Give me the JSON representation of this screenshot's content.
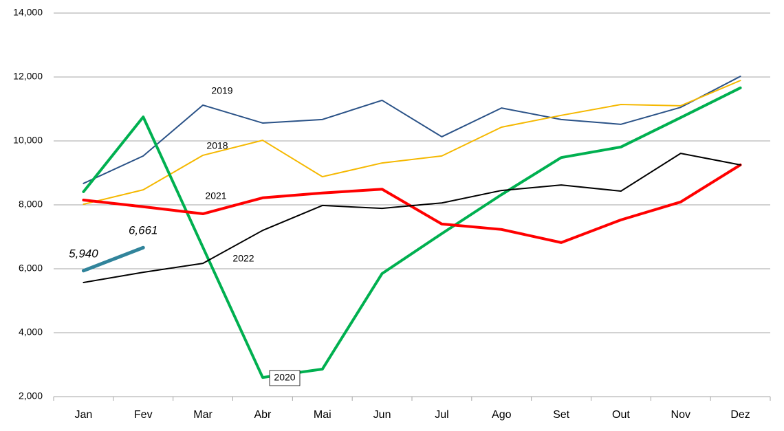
{
  "chart_data": {
    "type": "line",
    "categories": [
      "Jan",
      "Fev",
      "Mar",
      "Abr",
      "Mai",
      "Jun",
      "Jul",
      "Ago",
      "Set",
      "Out",
      "Nov",
      "Dez"
    ],
    "ylim": [
      2000,
      14000
    ],
    "yticks": [
      {
        "value": 2000,
        "label": "2,000"
      },
      {
        "value": 4000,
        "label": "4,000"
      },
      {
        "value": 6000,
        "label": "6,000"
      },
      {
        "value": 8000,
        "label": "8,000"
      },
      {
        "value": 10000,
        "label": "10,000"
      },
      {
        "value": 12000,
        "label": "12,000"
      },
      {
        "value": 14000,
        "label": "14,000"
      }
    ],
    "grid": true,
    "series": [
      {
        "name": "2019",
        "color": "#2a5287",
        "values": [
          8670,
          9530,
          11120,
          10560,
          10670,
          11270,
          10130,
          11030,
          10670,
          10520,
          11050,
          12020
        ]
      },
      {
        "name": "2018",
        "color": "#f5b800",
        "values": [
          8020,
          8470,
          9550,
          10020,
          8880,
          9310,
          9530,
          10430,
          10800,
          11140,
          11100,
          11890
        ]
      },
      {
        "name": "2020",
        "color": "#00b050",
        "values": [
          8410,
          10750,
          6670,
          2600,
          2860,
          5850,
          7100,
          8320,
          9480,
          9810,
          10730,
          11660
        ]
      },
      {
        "name": "2021",
        "color": "#ff0000",
        "values": [
          8150,
          7940,
          7720,
          8220,
          8370,
          8490,
          7400,
          7230,
          6820,
          7530,
          8090,
          9250
        ]
      },
      {
        "name": "2022",
        "color": "#000000",
        "values": [
          5570,
          5890,
          6170,
          7200,
          7980,
          7890,
          8060,
          8450,
          8620,
          8430,
          9610,
          9250
        ]
      },
      {
        "color": "#31849b",
        "values": [
          5940,
          6661,
          null,
          null,
          null,
          null,
          null,
          null,
          null,
          null,
          null,
          null
        ],
        "value_labels": [
          "5,940",
          "6,661",
          null,
          null,
          null,
          null,
          null,
          null,
          null,
          null,
          null,
          null
        ]
      }
    ]
  }
}
